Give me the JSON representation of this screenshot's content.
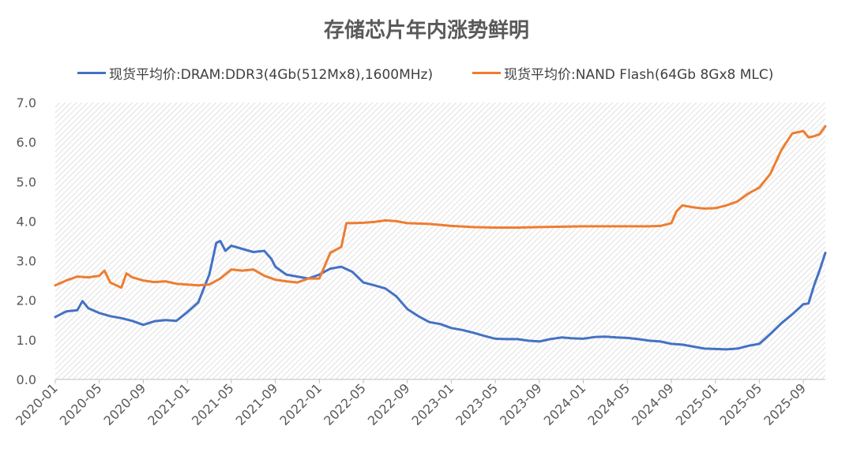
{
  "chart_data": {
    "type": "line",
    "title": "存储芯片年内涨势鲜明",
    "ylim": [
      0,
      7
    ],
    "yticks": [
      "0.0",
      "1.0",
      "2.0",
      "3.0",
      "4.0",
      "5.0",
      "6.0",
      "7.0"
    ],
    "xlim": [
      "2020-01",
      "2025-11"
    ],
    "xticks": [
      "2020-01",
      "2020-05",
      "2020-09",
      "2021-01",
      "2021-05",
      "2021-09",
      "2022-01",
      "2022-05",
      "2022-09",
      "2023-01",
      "2023-05",
      "2023-09",
      "2024-01",
      "2024-05",
      "2024-09",
      "2025-01",
      "2025-05",
      "2025-09"
    ],
    "legend_position": "top",
    "grid": false,
    "background": "diagonal-hatch",
    "series": [
      {
        "name": "现货平均价:DRAM:DDR3(4Gb(512Mx8),1600MHz)",
        "color": "#4472C4",
        "points": [
          [
            "2020-01",
            1.58
          ],
          [
            "2020-02",
            1.72
          ],
          [
            "2020-03",
            1.75
          ],
          [
            "2020-03-15",
            1.98
          ],
          [
            "2020-04",
            1.8
          ],
          [
            "2020-05",
            1.68
          ],
          [
            "2020-06",
            1.6
          ],
          [
            "2020-07",
            1.55
          ],
          [
            "2020-08",
            1.48
          ],
          [
            "2020-09",
            1.38
          ],
          [
            "2020-10",
            1.47
          ],
          [
            "2020-11",
            1.5
          ],
          [
            "2020-12",
            1.48
          ],
          [
            "2021-01",
            1.7
          ],
          [
            "2021-02",
            1.95
          ],
          [
            "2021-03",
            2.65
          ],
          [
            "2021-03-20",
            3.45
          ],
          [
            "2021-04",
            3.5
          ],
          [
            "2021-04-15",
            3.25
          ],
          [
            "2021-05",
            3.38
          ],
          [
            "2021-06",
            3.3
          ],
          [
            "2021-07",
            3.22
          ],
          [
            "2021-08",
            3.25
          ],
          [
            "2021-08-20",
            3.05
          ],
          [
            "2021-09",
            2.85
          ],
          [
            "2021-10",
            2.65
          ],
          [
            "2021-11",
            2.6
          ],
          [
            "2021-12",
            2.55
          ],
          [
            "2022-01",
            2.65
          ],
          [
            "2022-02",
            2.8
          ],
          [
            "2022-03",
            2.85
          ],
          [
            "2022-04",
            2.72
          ],
          [
            "2022-05",
            2.45
          ],
          [
            "2022-06",
            2.38
          ],
          [
            "2022-07",
            2.3
          ],
          [
            "2022-08",
            2.1
          ],
          [
            "2022-09",
            1.78
          ],
          [
            "2022-10",
            1.6
          ],
          [
            "2022-11",
            1.45
          ],
          [
            "2022-12",
            1.4
          ],
          [
            "2023-01",
            1.3
          ],
          [
            "2023-02",
            1.25
          ],
          [
            "2023-03",
            1.18
          ],
          [
            "2023-04",
            1.1
          ],
          [
            "2023-05",
            1.03
          ],
          [
            "2023-06",
            1.02
          ],
          [
            "2023-07",
            1.02
          ],
          [
            "2023-08",
            0.98
          ],
          [
            "2023-09",
            0.96
          ],
          [
            "2023-10",
            1.02
          ],
          [
            "2023-11",
            1.06
          ],
          [
            "2023-12",
            1.04
          ],
          [
            "2024-01",
            1.03
          ],
          [
            "2024-02",
            1.07
          ],
          [
            "2024-03",
            1.08
          ],
          [
            "2024-04",
            1.06
          ],
          [
            "2024-05",
            1.05
          ],
          [
            "2024-06",
            1.02
          ],
          [
            "2024-07",
            0.98
          ],
          [
            "2024-08",
            0.96
          ],
          [
            "2024-09",
            0.9
          ],
          [
            "2024-10",
            0.88
          ],
          [
            "2024-11",
            0.83
          ],
          [
            "2024-12",
            0.78
          ],
          [
            "2025-01",
            0.77
          ],
          [
            "2025-02",
            0.76
          ],
          [
            "2025-03",
            0.78
          ],
          [
            "2025-04",
            0.85
          ],
          [
            "2025-05",
            0.9
          ],
          [
            "2025-06",
            1.15
          ],
          [
            "2025-07",
            1.42
          ],
          [
            "2025-08",
            1.65
          ],
          [
            "2025-09",
            1.9
          ],
          [
            "2025-09-15",
            1.92
          ],
          [
            "2025-10",
            2.4
          ],
          [
            "2025-10-15",
            2.75
          ],
          [
            "2025-11",
            3.2
          ]
        ]
      },
      {
        "name": "现货平均价:NAND Flash(64Gb 8Gx8 MLC)",
        "color": "#ED7D31",
        "points": [
          [
            "2020-01",
            2.38
          ],
          [
            "2020-02",
            2.5
          ],
          [
            "2020-03",
            2.6
          ],
          [
            "2020-04",
            2.58
          ],
          [
            "2020-05",
            2.62
          ],
          [
            "2020-05-15",
            2.75
          ],
          [
            "2020-06",
            2.45
          ],
          [
            "2020-07",
            2.32
          ],
          [
            "2020-07-15",
            2.68
          ],
          [
            "2020-08",
            2.58
          ],
          [
            "2020-09",
            2.5
          ],
          [
            "2020-10",
            2.46
          ],
          [
            "2020-11",
            2.48
          ],
          [
            "2020-12",
            2.42
          ],
          [
            "2021-01",
            2.4
          ],
          [
            "2021-02",
            2.38
          ],
          [
            "2021-03",
            2.4
          ],
          [
            "2021-04",
            2.55
          ],
          [
            "2021-05",
            2.78
          ],
          [
            "2021-06",
            2.75
          ],
          [
            "2021-07",
            2.78
          ],
          [
            "2021-08",
            2.62
          ],
          [
            "2021-09",
            2.52
          ],
          [
            "2021-10",
            2.48
          ],
          [
            "2021-11",
            2.45
          ],
          [
            "2021-12",
            2.55
          ],
          [
            "2022-01",
            2.55
          ],
          [
            "2022-02",
            3.2
          ],
          [
            "2022-03",
            3.35
          ],
          [
            "2022-03-15",
            3.95
          ],
          [
            "2022-04",
            3.95
          ],
          [
            "2022-05",
            3.96
          ],
          [
            "2022-06",
            3.98
          ],
          [
            "2022-07",
            4.02
          ],
          [
            "2022-08",
            4.0
          ],
          [
            "2022-09",
            3.95
          ],
          [
            "2022-11",
            3.93
          ],
          [
            "2023-01",
            3.88
          ],
          [
            "2023-03",
            3.85
          ],
          [
            "2023-05",
            3.84
          ],
          [
            "2023-07",
            3.84
          ],
          [
            "2023-09",
            3.85
          ],
          [
            "2023-11",
            3.86
          ],
          [
            "2024-01",
            3.87
          ],
          [
            "2024-03",
            3.87
          ],
          [
            "2024-05",
            3.87
          ],
          [
            "2024-07",
            3.87
          ],
          [
            "2024-08",
            3.88
          ],
          [
            "2024-09",
            3.95
          ],
          [
            "2024-09-15",
            4.25
          ],
          [
            "2024-10",
            4.4
          ],
          [
            "2024-11",
            4.35
          ],
          [
            "2024-12",
            4.32
          ],
          [
            "2025-01",
            4.33
          ],
          [
            "2025-02",
            4.4
          ],
          [
            "2025-03",
            4.5
          ],
          [
            "2025-04",
            4.7
          ],
          [
            "2025-05",
            4.85
          ],
          [
            "2025-06",
            5.2
          ],
          [
            "2025-07",
            5.8
          ],
          [
            "2025-08",
            6.22
          ],
          [
            "2025-09",
            6.28
          ],
          [
            "2025-09-15",
            6.12
          ],
          [
            "2025-10",
            6.15
          ],
          [
            "2025-10-15",
            6.2
          ],
          [
            "2025-11",
            6.4
          ]
        ]
      }
    ]
  }
}
